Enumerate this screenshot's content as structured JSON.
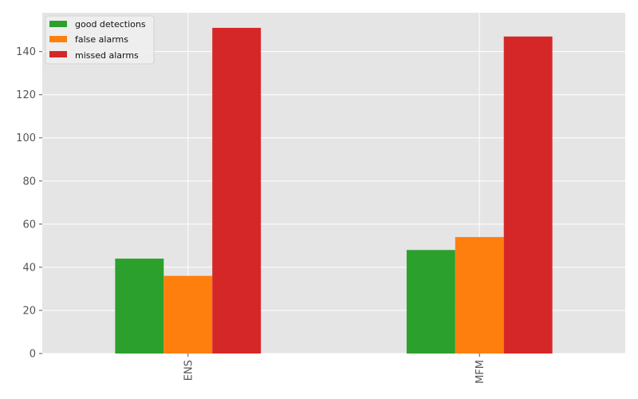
{
  "chart_data": {
    "type": "bar",
    "title": "",
    "xlabel": "",
    "ylabel": "",
    "categories": [
      "ENS",
      "MFM"
    ],
    "series": [
      {
        "name": "good detections",
        "values": [
          44,
          48
        ],
        "color": "#2ca02c"
      },
      {
        "name": "false alarms",
        "values": [
          36,
          54
        ],
        "color": "#ff7f0e"
      },
      {
        "name": "missed alarms",
        "values": [
          151,
          147
        ],
        "color": "#d62728"
      }
    ],
    "ylim": [
      0,
      158
    ],
    "yticks": [
      0,
      20,
      40,
      60,
      80,
      100,
      120,
      140
    ],
    "grid": true,
    "legend_position": "top-left",
    "x_tick_rotation": "vertical",
    "style": {
      "plot_background": "#e5e5e5",
      "grid_color": "#ffffff",
      "tick_color": "#555555"
    }
  }
}
